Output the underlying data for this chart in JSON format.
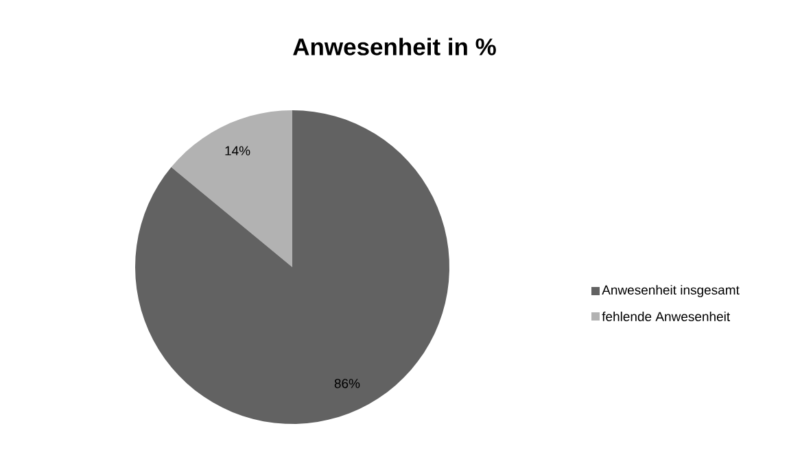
{
  "chart_data": {
    "type": "pie",
    "title": "Anwesenheit in %",
    "categories": [
      "Anwesenheit insgesamt",
      "fehlende Anwesenheit"
    ],
    "values": [
      86,
      14
    ],
    "colors": [
      "#626262",
      "#b2b2b2"
    ],
    "value_labels": [
      "86%",
      "14%"
    ],
    "legend": "right"
  }
}
